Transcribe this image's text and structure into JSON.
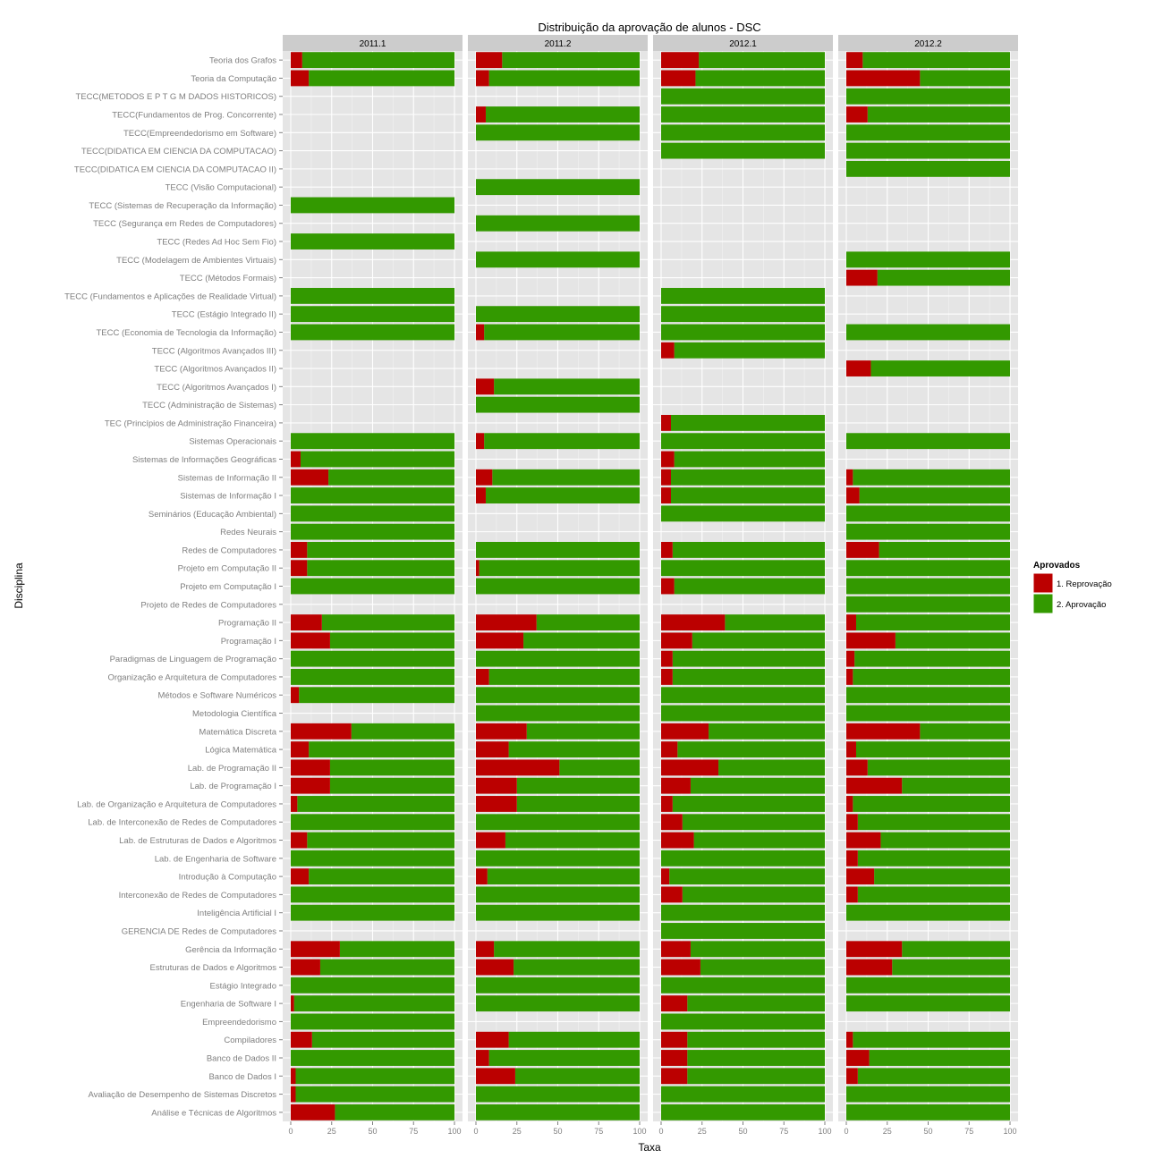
{
  "chart_data": {
    "type": "bar",
    "orientation": "horizontal",
    "stacked": true,
    "title": "Distribuição da aprovação de alunos - DSC",
    "xlabel": "Taxa",
    "ylabel": "Disciplina",
    "xlim": [
      0,
      100
    ],
    "x_ticks": [
      "0",
      "25",
      "50",
      "75",
      "100"
    ],
    "grid": true,
    "legend": {
      "title": "Aprovados",
      "position": "right",
      "items": [
        {
          "label": "1. Reprovação",
          "color": "#bb0000"
        },
        {
          "label": "2. Aprovação",
          "color": "#339900"
        }
      ]
    },
    "facets": [
      "2011.1",
      "2011.2",
      "2012.1",
      "2012.2"
    ],
    "categories": [
      "Teoria dos Grafos",
      "Teoria da Computação",
      "TECC(METODOS E P T G M DADOS HISTORICOS)",
      "TECC(Fundamentos de Prog. Concorrente)",
      "TECC(Empreendedorismo em Software)",
      "TECC(DIDATICA EM CIENCIA DA COMPUTACAO)",
      "TECC(DIDATICA EM CIENCIA DA COMPUTACAO II)",
      "TECC (Visão Computacional)",
      "TECC (Sistemas de Recuperação da Informação)",
      "TECC (Segurança em Redes de Computadores)",
      "TECC (Redes Ad Hoc Sem Fio)",
      "TECC (Modelagem de Ambientes Virtuais)",
      "TECC (Métodos Formais)",
      "TECC (Fundamentos e Aplicações de Realidade Virtual)",
      "TECC (Estágio Integrado II)",
      "TECC (Economia de Tecnologia da Informação)",
      "TECC (Algoritmos Avançados III)",
      "TECC (Algoritmos Avançados II)",
      "TECC (Algoritmos Avançados I)",
      "TECC (Administração de Sistemas)",
      "TEC (Princípios de Administração Financeira)",
      "Sistemas Operacionais",
      "Sistemas de Informações Geográficas",
      "Sistemas de Informação II",
      "Sistemas de Informação I",
      "Seminários (Educação Ambiental)",
      "Redes Neurais",
      "Redes de Computadores",
      "Projeto em Computação II",
      "Projeto em Computação I",
      "Projeto de Redes de Computadores",
      "Programação II",
      "Programação I",
      "Paradigmas de Linguagem de Programação",
      "Organização e Arquitetura de Computadores",
      "Métodos e Software Numéricos",
      "Metodologia Científica",
      "Matemática Discreta",
      "Lógica Matemática",
      "Lab. de Programação II",
      "Lab. de Programação I",
      "Lab. de Organização e Arquitetura de Computadores",
      "Lab. de Interconexão de Redes de Computadores",
      "Lab. de Estruturas de Dados e Algoritmos",
      "Lab. de Engenharia de Software",
      "Introdução à Computação",
      "Interconexão de Redes de Computadores",
      "Inteligência Artificial I",
      "GERENCIA DE Redes de Computadores",
      "Gerência da Informação",
      "Estruturas de Dados e Algoritmos",
      "Estágio Integrado",
      "Engenharia de Software I",
      "Empreendedorismo",
      "Compiladores",
      "Banco de Dados II",
      "Banco de Dados I",
      "Avaliação de Desempenho de Sistemas Discretos",
      "Análise e Técnicas de Algoritmos"
    ],
    "series": [
      {
        "name": "1. Reprovação",
        "color": "#bb0000",
        "values_by_facet": [
          [
            7,
            11,
            null,
            null,
            null,
            null,
            null,
            null,
            0,
            null,
            0,
            null,
            null,
            0,
            0,
            0,
            null,
            null,
            null,
            null,
            null,
            0,
            6,
            23,
            0,
            0,
            0,
            10,
            10,
            0,
            null,
            19,
            24,
            0,
            0,
            5,
            null,
            37,
            11,
            24,
            24,
            4,
            0,
            10,
            0,
            11,
            0,
            0,
            null,
            30,
            18,
            0,
            2,
            0,
            13,
            0,
            3,
            3,
            27
          ],
          [
            16,
            8,
            null,
            6,
            0,
            null,
            null,
            0,
            null,
            0,
            null,
            0,
            null,
            null,
            0,
            5,
            null,
            null,
            11,
            0,
            null,
            5,
            null,
            10,
            6,
            null,
            null,
            0,
            2,
            0,
            null,
            37,
            29,
            0,
            8,
            0,
            0,
            31,
            20,
            51,
            25,
            25,
            0,
            18,
            0,
            7,
            0,
            0,
            null,
            11,
            23,
            0,
            0,
            null,
            20,
            8,
            24,
            0,
            0
          ],
          [
            23,
            21,
            0,
            0,
            0,
            0,
            null,
            null,
            null,
            null,
            null,
            null,
            null,
            0,
            0,
            0,
            8,
            null,
            null,
            null,
            6,
            0,
            8,
            6,
            6,
            0,
            null,
            7,
            0,
            8,
            null,
            39,
            19,
            7,
            7,
            0,
            0,
            29,
            10,
            35,
            18,
            7,
            13,
            20,
            0,
            5,
            13,
            0,
            0,
            18,
            24,
            0,
            16,
            0,
            16,
            16,
            16,
            0,
            0
          ],
          [
            10,
            45,
            0,
            13,
            0,
            0,
            0,
            null,
            null,
            null,
            null,
            0,
            19,
            null,
            null,
            0,
            null,
            15,
            null,
            null,
            null,
            0,
            null,
            4,
            8,
            0,
            0,
            20,
            0,
            0,
            0,
            6,
            30,
            5,
            4,
            0,
            0,
            45,
            6,
            13,
            34,
            4,
            7,
            21,
            7,
            17,
            7,
            0,
            null,
            34,
            28,
            0,
            0,
            null,
            4,
            14,
            7,
            0,
            0
          ]
        ]
      },
      {
        "name": "2. Aprovação",
        "color": "#339900",
        "note_values": "complement to 100"
      }
    ]
  }
}
